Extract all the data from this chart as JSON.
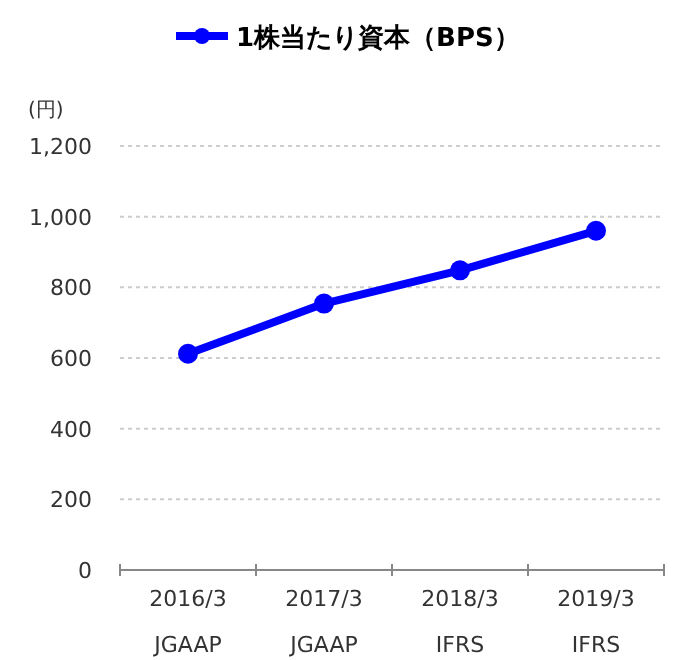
{
  "chart_data": {
    "type": "line",
    "ylabel": "(円)",
    "categories": [
      "2016/3\nJGAAP",
      "2017/3\nJGAAP",
      "2018/3\nIFRS",
      "2019/3\nIFRS"
    ],
    "series": [
      {
        "name": "1株当たり資本（BPS）",
        "color": "#0000ff",
        "values": [
          612,
          754,
          848,
          960
        ]
      }
    ],
    "ylim": [
      0,
      1200
    ],
    "yticks": [
      0,
      {
        "value": 200,
        "label": "200"
      },
      {
        "value": 400,
        "label": "400"
      },
      {
        "value": 600,
        "label": "600"
      },
      {
        "value": 800,
        "label": "800"
      },
      {
        "value": 1000,
        "label": "1,000"
      },
      {
        "value": 1200,
        "label": "1,200"
      }
    ],
    "grid": "y",
    "legend": "top",
    "marker": "circle",
    "line_style": "solid"
  }
}
